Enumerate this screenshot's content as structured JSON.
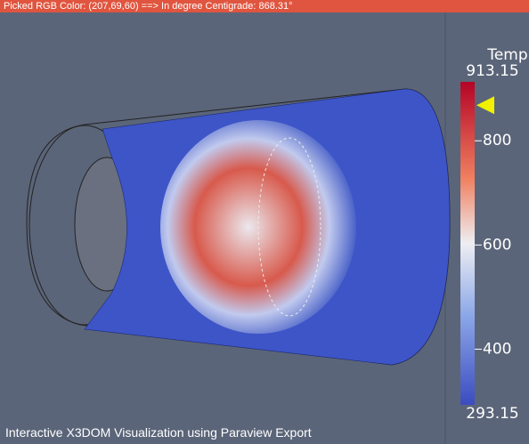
{
  "header": {
    "label": "Picked RGB Color: (207,69,60) ==> In degree Centigrade:",
    "value": 868.31,
    "unit": "°"
  },
  "colorbar": {
    "title": "Temp",
    "max": 913.15,
    "min": 293.15,
    "ticks": [
      800,
      600,
      400
    ]
  },
  "caption": "Interactive X3DOM  Visualization using Paraview Export"
}
